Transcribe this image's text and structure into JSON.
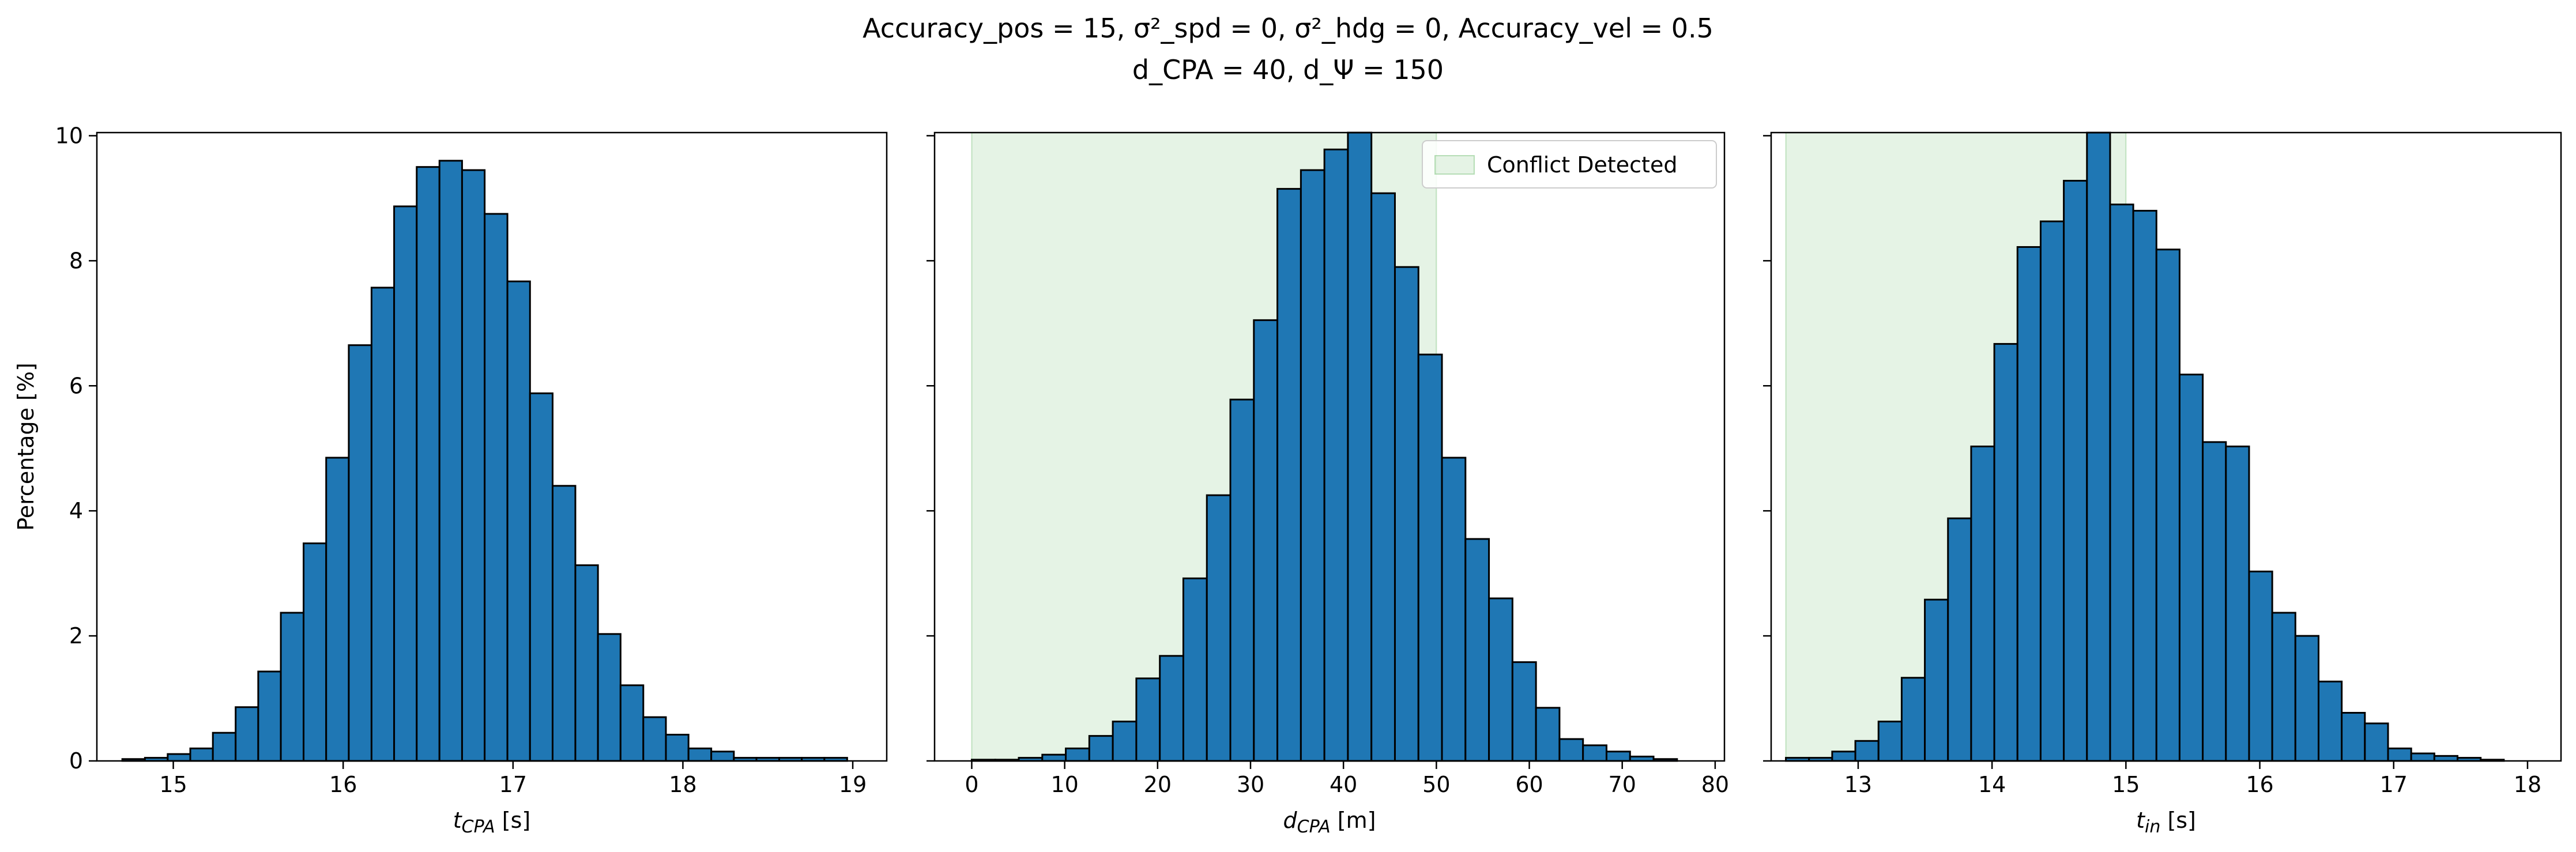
{
  "figure": {
    "title_line1": "Accuracy_pos = 15, σ²_spd = 0, σ²_hdg = 0, Accuracy_vel = 0.5",
    "title_line2": "d_CPA = 40, d_Ψ = 150"
  },
  "colors": {
    "bar": "#1f77b4",
    "edge": "#000000",
    "conflict_fill": "#2ca02c"
  },
  "chart_data": [
    {
      "type": "bar",
      "title": "",
      "xlabel": "t_CPA [s]",
      "ylabel": "Percentage [%]",
      "xlim": [
        14.55,
        19.2
      ],
      "ylim": [
        0,
        10.05
      ],
      "xticks": [
        15,
        16,
        17,
        18,
        19
      ],
      "yticks": [
        0,
        2,
        4,
        6,
        8,
        10
      ],
      "bin_edges": [
        14.7,
        14.833,
        14.967,
        15.1,
        15.233,
        15.367,
        15.5,
        15.633,
        15.767,
        15.9,
        16.033,
        16.167,
        16.3,
        16.433,
        16.567,
        16.7,
        16.833,
        16.967,
        17.1,
        17.233,
        17.367,
        17.5,
        17.633,
        17.767,
        17.9,
        18.033,
        18.167,
        18.3,
        18.433,
        18.567,
        18.7,
        18.833,
        18.967
      ],
      "values": [
        0.03,
        0.05,
        0.11,
        0.2,
        0.45,
        0.86,
        1.43,
        2.37,
        3.48,
        4.85,
        6.65,
        7.57,
        8.87,
        9.5,
        9.6,
        9.45,
        8.75,
        7.67,
        5.88,
        4.4,
        3.13,
        2.03,
        1.21,
        0.7,
        0.42,
        0.2,
        0.15,
        0.05,
        0.05,
        0.05,
        0.05,
        0.05
      ],
      "conflict_region": null,
      "legend": null
    },
    {
      "type": "bar",
      "title": "",
      "xlabel": "d_CPA [m]",
      "ylabel": "",
      "xlim": [
        -4,
        81
      ],
      "ylim": [
        0,
        10.05
      ],
      "xticks": [
        0,
        10,
        20,
        30,
        40,
        50,
        60,
        70,
        80
      ],
      "yticks": [
        0,
        2,
        4,
        6,
        8,
        10
      ],
      "bin_edges": [
        0,
        2.53,
        5.06,
        7.59,
        10.12,
        12.65,
        15.18,
        17.71,
        20.24,
        22.77,
        25.3,
        27.83,
        30.36,
        32.89,
        35.42,
        37.95,
        40.48,
        43.01,
        45.54,
        48.07,
        50.6,
        53.13,
        55.66,
        58.19,
        60.72,
        63.25,
        65.78,
        68.31,
        70.84,
        73.37,
        75.9
      ],
      "values": [
        0.02,
        0.02,
        0.05,
        0.1,
        0.2,
        0.4,
        0.63,
        1.32,
        1.68,
        2.92,
        4.25,
        5.78,
        7.05,
        9.15,
        9.45,
        9.78,
        10.05,
        9.08,
        7.9,
        6.5,
        4.85,
        3.55,
        2.6,
        1.58,
        0.85,
        0.35,
        0.25,
        0.15,
        0.07,
        0.03
      ],
      "conflict_region": [
        0,
        50
      ],
      "legend": {
        "label": "Conflict Detected",
        "position": "upper right"
      }
    },
    {
      "type": "bar",
      "title": "",
      "xlabel": "t_in [s]",
      "ylabel": "",
      "xlim": [
        12.35,
        18.25
      ],
      "ylim": [
        0,
        10.05
      ],
      "xticks": [
        13,
        14,
        15,
        16,
        17,
        18
      ],
      "yticks": [
        0,
        2,
        4,
        6,
        8,
        10
      ],
      "bin_edges": [
        12.46,
        12.633,
        12.806,
        12.979,
        13.152,
        13.325,
        13.498,
        13.671,
        13.844,
        14.017,
        14.19,
        14.363,
        14.536,
        14.709,
        14.882,
        15.055,
        15.228,
        15.401,
        15.574,
        15.747,
        15.92,
        16.093,
        16.266,
        16.439,
        16.612,
        16.785,
        16.958,
        17.131,
        17.304,
        17.477,
        17.65,
        17.823
      ],
      "values": [
        0.05,
        0.05,
        0.15,
        0.32,
        0.63,
        1.33,
        2.58,
        3.88,
        5.03,
        6.67,
        8.22,
        8.63,
        9.28,
        10.05,
        8.9,
        8.8,
        8.18,
        6.18,
        5.1,
        5.03,
        3.03,
        2.37,
        2.0,
        1.27,
        0.77,
        0.6,
        0.2,
        0.12,
        0.08,
        0.05,
        0.02
      ],
      "conflict_region": [
        12.46,
        15.0
      ],
      "legend": null
    }
  ]
}
